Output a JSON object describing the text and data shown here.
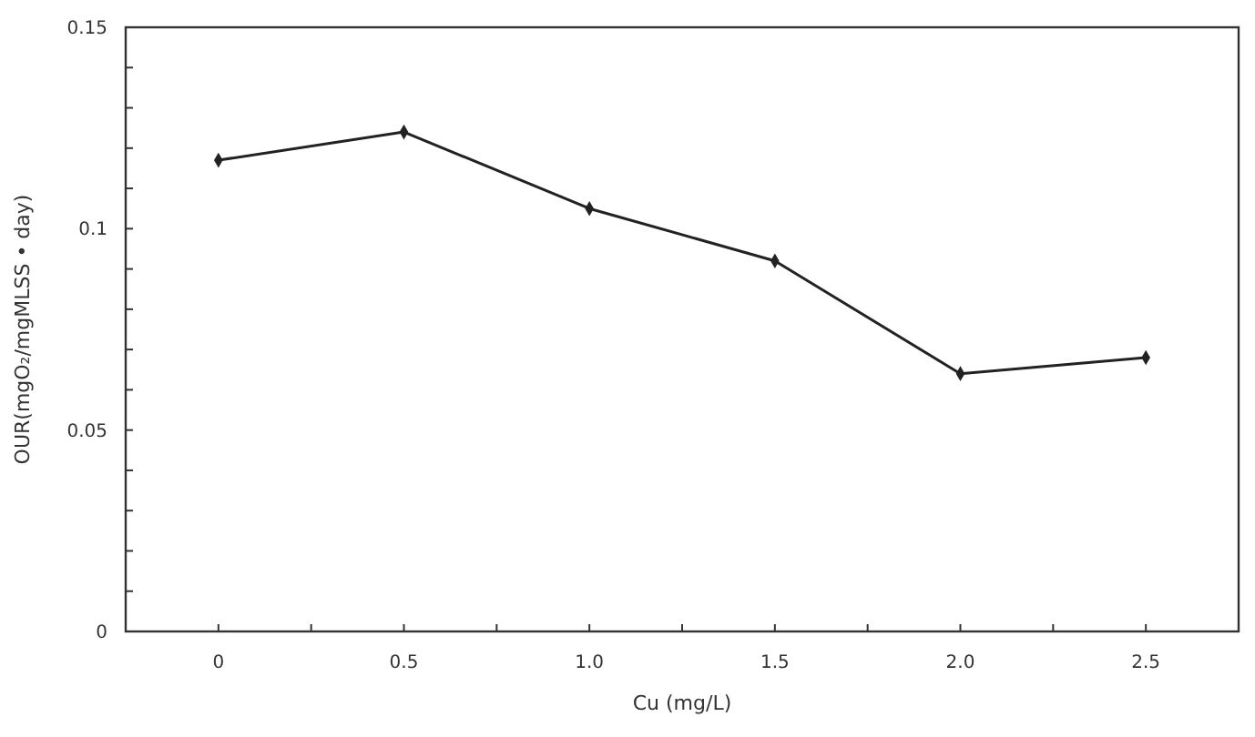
{
  "chart_data": {
    "type": "line",
    "xlabel": "Cu (mg/L)",
    "ylabel": "OUR(mgO₂/mgMLSS • day)",
    "x": [
      0,
      0.5,
      1.0,
      1.5,
      2.0,
      2.5
    ],
    "series": [
      {
        "color": "#222222",
        "values": [
          0.117,
          0.124,
          0.105,
          0.092,
          0.064,
          0.068
        ]
      }
    ],
    "xlim": [
      -0.25,
      2.75
    ],
    "xticks": [
      0,
      {
        "value": 0.25,
        "label": null
      },
      {
        "value": 0.5,
        "label": "0.5"
      },
      {
        "value": 0.75,
        "label": null
      },
      {
        "value": 1,
        "label": "1.0"
      },
      {
        "value": 1.25,
        "label": null
      },
      {
        "value": 1.5,
        "label": "1.5"
      },
      {
        "value": 1.75,
        "label": null
      },
      {
        "value": 2,
        "label": "2.0"
      },
      {
        "value": 2.25,
        "label": null
      },
      {
        "value": 2.5,
        "label": "2.5"
      }
    ],
    "ylim": [
      0,
      0.15
    ],
    "yticks": [
      0,
      {
        "value": 0.01,
        "label": null
      },
      {
        "value": 0.02,
        "label": null
      },
      {
        "value": 0.03,
        "label": null
      },
      {
        "value": 0.04,
        "label": null
      },
      0.05,
      {
        "value": 0.06,
        "label": null
      },
      {
        "value": 0.07,
        "label": null
      },
      {
        "value": 0.08,
        "label": null
      },
      {
        "value": 0.09,
        "label": null
      },
      0.1,
      {
        "value": 0.11,
        "label": null
      },
      {
        "value": 0.12,
        "label": null
      },
      {
        "value": 0.13,
        "label": null
      },
      {
        "value": 0.14,
        "label": null
      },
      0.15
    ],
    "grid": false,
    "marker": "diamond",
    "line_style": "solid"
  }
}
